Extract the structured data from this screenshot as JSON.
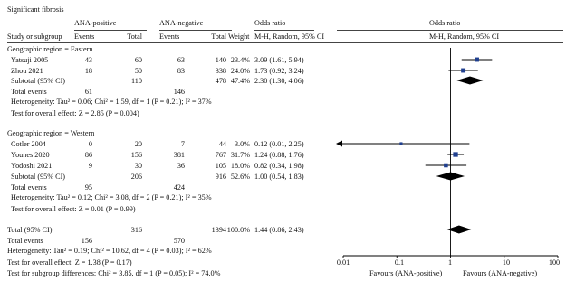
{
  "title": "Significant fibrosis",
  "headers": {
    "group_pos": "ANA-positive",
    "group_neg": "ANA-negative",
    "or_col": "Odds ratio",
    "or_plot": "Odds ratio",
    "study": "Study or subgroup",
    "events": "Events",
    "total": "Total",
    "weight": "Weight",
    "method_col": "M-H, Random, 95% CI",
    "method_plot": "M-H, Random, 95% CI"
  },
  "subgroups": [
    {
      "label": "Geographic region = Eastern",
      "studies": [
        {
          "name": "Yatsuji 2005",
          "pos_events": "43",
          "pos_total": "60",
          "neg_events": "63",
          "neg_total": "140",
          "weight": "23.4%",
          "ci": "3.09 (1.61, 5.94)"
        },
        {
          "name": "Zhou 2021",
          "pos_events": "18",
          "pos_total": "50",
          "neg_events": "83",
          "neg_total": "338",
          "weight": "24.0%",
          "ci": "1.73 (0.92, 3.24)"
        }
      ],
      "subtotal": {
        "label": "Subtotal (95% CI)",
        "pos_total": "110",
        "neg_total": "478",
        "weight": "47.4%",
        "ci": "2.30 (1.30, 4.06)"
      },
      "total_events": {
        "label": "Total events",
        "pos": "61",
        "neg": "146"
      },
      "heterogeneity": "Heterogeneity: Tau² = 0.06; Chi² = 1.59, df = 1 (P = 0.21); I² = 37%",
      "overall_test": "Test for overall effect: Z = 2.85 (P = 0.004)"
    },
    {
      "label": "Geographic region = Western",
      "studies": [
        {
          "name": "Cotler 2004",
          "pos_events": "0",
          "pos_total": "20",
          "neg_events": "7",
          "neg_total": "44",
          "weight": "3.0%",
          "ci": "0.12 (0.01, 2.25)"
        },
        {
          "name": "Younes 2020",
          "pos_events": "86",
          "pos_total": "156",
          "neg_events": "381",
          "neg_total": "767",
          "weight": "31.7%",
          "ci": "1.24 (0.88, 1.76)"
        },
        {
          "name": "Yodoshi 2021",
          "pos_events": "9",
          "pos_total": "30",
          "neg_events": "36",
          "neg_total": "105",
          "weight": "18.0%",
          "ci": "0.82 (0.34, 1.98)"
        }
      ],
      "subtotal": {
        "label": "Subtotal (95% CI)",
        "pos_total": "206",
        "neg_total": "916",
        "weight": "52.6%",
        "ci": "1.00 (0.54, 1.83)"
      },
      "total_events": {
        "label": "Total events",
        "pos": "95",
        "neg": "424"
      },
      "heterogeneity": "Heterogeneity: Tau² = 0.12; Chi² = 3.08, df = 2 (P = 0.21); I² = 35%",
      "overall_test": "Test for overall effect: Z = 0.01 (P = 0.99)"
    }
  ],
  "total": {
    "label": "Total (95% CI)",
    "pos_total": "316",
    "neg_total": "1394",
    "weight": "100.0%",
    "ci": "1.44 (0.86, 2.43)"
  },
  "total_events": {
    "label": "Total events",
    "pos": "156",
    "neg": "570"
  },
  "total_heterogeneity": "Heterogeneity: Tau² = 0.19; Chi² = 10.62, df = 4 (P = 0.03); I² = 62%",
  "total_overall_test": "Test for overall effect: Z = 1.38 (P = 0.17)",
  "subgroup_diff": "Test for subgroup differences: Chi² = 3.85, df = 1 (P = 0.05); I² = 74.0%",
  "axis_ticks": [
    "0.01",
    "0.1",
    "1",
    "10",
    "100"
  ],
  "favours_left": "Favours (ANA-positive)",
  "favours_right": "Favours (ANA-negative)",
  "colors": {
    "study_marker": "#1f3f8f",
    "diamond": "#000000",
    "line": "#000000"
  },
  "chart_data": {
    "type": "forest",
    "scale": "log",
    "xlim": [
      0.01,
      100
    ],
    "reference_line": 1,
    "studies": [
      {
        "name": "Yatsuji 2005",
        "or": 3.09,
        "lo": 1.61,
        "hi": 5.94,
        "weight": 23.4
      },
      {
        "name": "Zhou 2021",
        "or": 1.73,
        "lo": 0.92,
        "hi": 3.24,
        "weight": 24.0
      },
      {
        "name": "Cotler 2004",
        "or": 0.12,
        "lo": 0.01,
        "hi": 2.25,
        "weight": 3.0
      },
      {
        "name": "Younes 2020",
        "or": 1.24,
        "lo": 0.88,
        "hi": 1.76,
        "weight": 31.7
      },
      {
        "name": "Yodoshi 2021",
        "or": 0.82,
        "lo": 0.34,
        "hi": 1.98,
        "weight": 18.0
      }
    ],
    "subtotals": [
      {
        "name": "Eastern",
        "or": 2.3,
        "lo": 1.3,
        "hi": 4.06
      },
      {
        "name": "Western",
        "or": 1.0,
        "lo": 0.54,
        "hi": 1.83
      }
    ],
    "overall": {
      "or": 1.44,
      "lo": 0.86,
      "hi": 2.43
    }
  }
}
